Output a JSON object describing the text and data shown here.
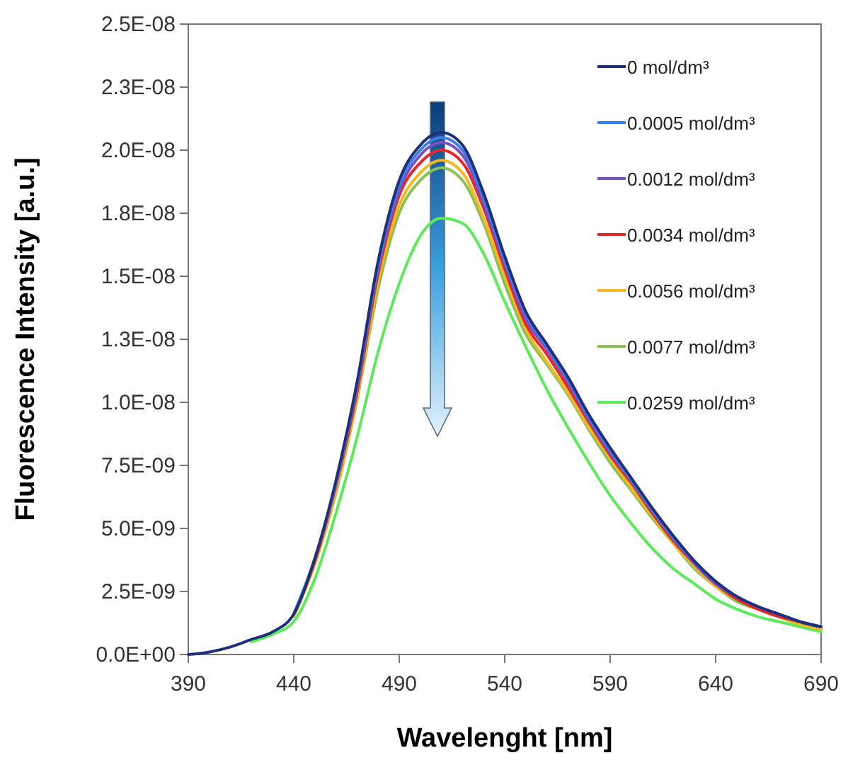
{
  "chart_data": {
    "type": "line",
    "xlabel": "Wavelenght [nm]",
    "ylabel": "Fluorescence Intensity [a.u.]",
    "x": [
      390,
      400,
      410,
      420,
      430,
      440,
      450,
      460,
      470,
      480,
      490,
      500,
      510,
      520,
      530,
      540,
      550,
      560,
      570,
      580,
      590,
      600,
      610,
      620,
      630,
      640,
      650,
      660,
      670,
      680,
      690
    ],
    "xlim": [
      390,
      690
    ],
    "xticks": [
      390,
      440,
      490,
      540,
      590,
      640,
      690
    ],
    "ylim": [
      0,
      2.5e-08
    ],
    "yticks": [
      {
        "value": 0,
        "label": "0.0E+00"
      },
      {
        "value": 2.5e-09,
        "label": "2.5E-09"
      },
      {
        "value": 5e-09,
        "label": "5.0E-09"
      },
      {
        "value": 7.5e-09,
        "label": "7.5E-09"
      },
      {
        "value": 1e-08,
        "label": "1.0E-08"
      },
      {
        "value": 1.25e-08,
        "label": "1.3E-08"
      },
      {
        "value": 1.5e-08,
        "label": "1.5E-08"
      },
      {
        "value": 1.75e-08,
        "label": "1.8E-08"
      },
      {
        "value": 2e-08,
        "label": "2.0E-08"
      },
      {
        "value": 2.25e-08,
        "label": "2.3E-08"
      },
      {
        "value": 2.5e-08,
        "label": "2.5E-08"
      }
    ],
    "grid": false,
    "legend": "top right",
    "marker": "none",
    "line_style": "solid",
    "series": [
      {
        "name": "0 mol/dm³",
        "color": "#1f2f7a",
        "values": [
          0,
          1e-10,
          3e-10,
          6e-10,
          9e-10,
          1.6e-09,
          3.8e-09,
          6.9e-09,
          1.08e-08,
          1.56e-08,
          1.88e-08,
          2.02e-08,
          2.07e-08,
          2.02e-08,
          1.83e-08,
          1.58e-08,
          1.36e-08,
          1.23e-08,
          1.1e-08,
          9.5e-09,
          8.2e-09,
          7e-09,
          5.8e-09,
          4.7e-09,
          3.7e-09,
          2.9e-09,
          2.3e-09,
          1.9e-09,
          1.6e-09,
          1.3e-09,
          1.1e-09
        ]
      },
      {
        "name": "0.0005 mol/dm³",
        "color": "#3a7ee6",
        "values": [
          null,
          null,
          null,
          null,
          null,
          1.6e-09,
          3.8e-09,
          6.8e-09,
          1.07e-08,
          1.54e-08,
          1.86e-08,
          2e-08,
          2.05e-08,
          2e-08,
          1.81e-08,
          1.56e-08,
          1.35e-08,
          1.22e-08,
          1.09e-08,
          9.4e-09,
          8.1e-09,
          6.9e-09,
          5.7e-09,
          4.6e-09,
          3.7e-09,
          2.9e-09,
          2.3e-09,
          1.9e-09,
          1.6e-09,
          1.3e-09,
          1.1e-09
        ]
      },
      {
        "name": "0.0012 mol/dm³",
        "color": "#7b4fc4",
        "values": [
          null,
          null,
          null,
          null,
          null,
          1.6e-09,
          3.8e-09,
          6.8e-09,
          1.06e-08,
          1.53e-08,
          1.84e-08,
          1.98e-08,
          2.03e-08,
          1.98e-08,
          1.79e-08,
          1.55e-08,
          1.33e-08,
          1.21e-08,
          1.08e-08,
          9.3e-09,
          8e-09,
          6.9e-09,
          5.7e-09,
          4.6e-09,
          3.6e-09,
          2.8e-09,
          2.3e-09,
          1.9e-09,
          1.6e-09,
          1.3e-09,
          1.1e-09
        ]
      },
      {
        "name": "0.0034 mol/dm³",
        "color": "#e8262a",
        "values": [
          null,
          null,
          null,
          null,
          null,
          1.6e-09,
          3.7e-09,
          6.7e-09,
          1.04e-08,
          1.51e-08,
          1.82e-08,
          1.95e-08,
          2e-08,
          1.95e-08,
          1.77e-08,
          1.53e-08,
          1.31e-08,
          1.19e-08,
          1.06e-08,
          9.2e-09,
          7.9e-09,
          6.8e-09,
          5.6e-09,
          4.5e-09,
          3.6e-09,
          2.8e-09,
          2.2e-09,
          1.8e-09,
          1.5e-09,
          1.3e-09,
          1.1e-09
        ]
      },
      {
        "name": "0.0056 mol/dm³",
        "color": "#f5b820",
        "values": [
          null,
          null,
          null,
          null,
          null,
          1.5e-09,
          3.6e-09,
          6.5e-09,
          1.02e-08,
          1.48e-08,
          1.78e-08,
          1.91e-08,
          1.96e-08,
          1.91e-08,
          1.73e-08,
          1.5e-08,
          1.29e-08,
          1.16e-08,
          1.04e-08,
          9e-09,
          7.8e-09,
          6.6e-09,
          5.5e-09,
          4.4e-09,
          3.5e-09,
          2.7e-09,
          2.2e-09,
          1.8e-09,
          1.5e-09,
          1.2e-09,
          1e-09
        ]
      },
      {
        "name": "0.0077 mol/dm³",
        "color": "#8cc152",
        "values": [
          null,
          null,
          null,
          null,
          null,
          1.5e-09,
          3.6e-09,
          6.4e-09,
          1.01e-08,
          1.45e-08,
          1.75e-08,
          1.88e-08,
          1.93e-08,
          1.88e-08,
          1.71e-08,
          1.47e-08,
          1.27e-08,
          1.15e-08,
          1.03e-08,
          8.9e-09,
          7.6e-09,
          6.5e-09,
          5.4e-09,
          4.4e-09,
          3.4e-09,
          2.7e-09,
          2.1e-09,
          1.8e-09,
          1.5e-09,
          1.2e-09,
          1e-09
        ]
      },
      {
        "name": "0.0259 mol/dm³",
        "color": "#5aea5a",
        "values": [
          null,
          null,
          null,
          5e-10,
          8e-10,
          1.3e-09,
          3e-09,
          5.6e-09,
          8.6e-09,
          1.2e-08,
          1.47e-08,
          1.66e-08,
          1.73e-08,
          1.71e-08,
          1.59e-08,
          1.4e-08,
          1.22e-08,
          1.05e-08,
          9e-09,
          7.6e-09,
          6.3e-09,
          5.2e-09,
          4.2e-09,
          3.4e-09,
          2.8e-09,
          2.2e-09,
          1.8e-09,
          1.5e-09,
          1.3e-09,
          1.1e-09,
          9e-10
        ]
      }
    ]
  }
}
